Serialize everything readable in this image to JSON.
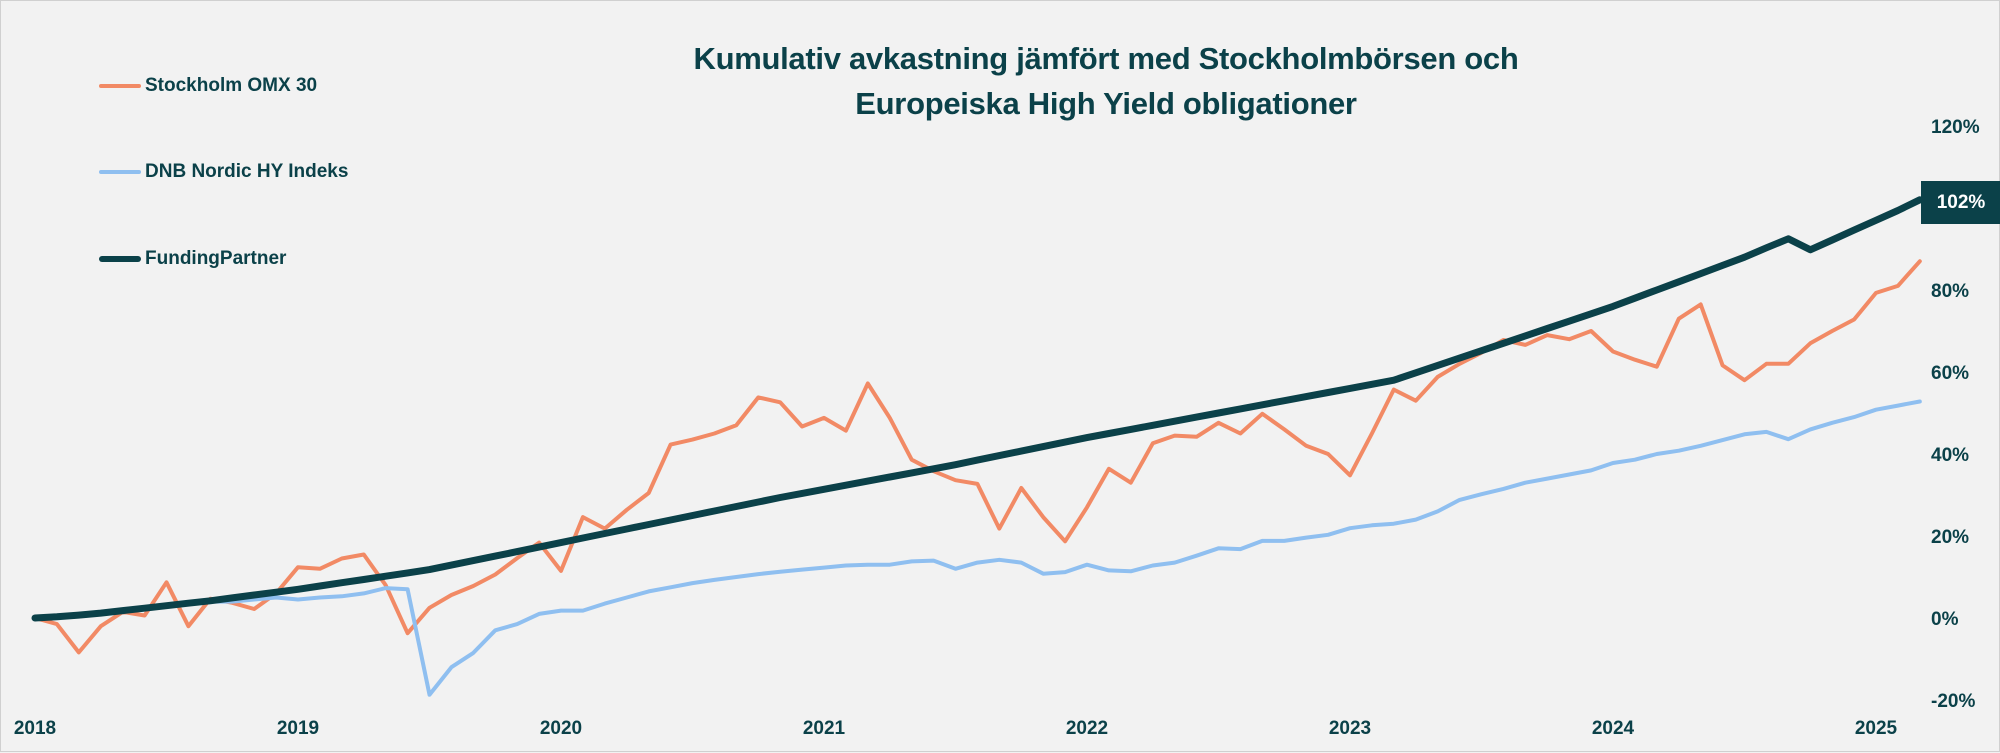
{
  "chart_data": {
    "type": "line",
    "title": "Kumulativ avkastning jämfört med Stockholmbörsen och Europeiska High Yield obligationer",
    "title_lines": [
      "Kumulativ avkastning jämfört med Stockholmbörsen och",
      "Europeiska High Yield obligationer"
    ],
    "xlabel": "",
    "ylabel": "",
    "x_tick_labels": [
      "2018",
      "2019",
      "2020",
      "2021",
      "2022",
      "2023",
      "2024",
      "2025"
    ],
    "y_tick_labels": [
      "120%",
      "100%",
      "80%",
      "60%",
      "40%",
      "20%",
      "0%",
      "-20%"
    ],
    "y_ticks_shown": [
      "120%",
      "80%",
      "60%",
      "40%",
      "20%",
      "0%",
      "-20%"
    ],
    "ylim": [
      -20,
      120
    ],
    "y_unit": "%",
    "grid": false,
    "legend_placement": "top-left",
    "y_axis_side": "right",
    "end_label": "102%",
    "x": [
      "2018-01",
      "2018-02",
      "2018-03",
      "2018-04",
      "2018-05",
      "2018-06",
      "2018-07",
      "2018-08",
      "2018-09",
      "2018-10",
      "2018-11",
      "2018-12",
      "2019-01",
      "2019-02",
      "2019-03",
      "2019-04",
      "2019-05",
      "2019-06",
      "2019-07",
      "2019-08",
      "2019-09",
      "2019-10",
      "2019-11",
      "2019-12",
      "2020-01",
      "2020-02",
      "2020-03",
      "2020-04",
      "2020-05",
      "2020-06",
      "2020-07",
      "2020-08",
      "2020-09",
      "2020-10",
      "2020-11",
      "2020-12",
      "2021-01",
      "2021-02",
      "2021-03",
      "2021-04",
      "2021-05",
      "2021-06",
      "2021-07",
      "2021-08",
      "2021-09",
      "2021-10",
      "2021-11",
      "2021-12",
      "2022-01",
      "2022-02",
      "2022-03",
      "2022-04",
      "2022-05",
      "2022-06",
      "2022-07",
      "2022-08",
      "2022-09",
      "2022-10",
      "2022-11",
      "2022-12",
      "2023-01",
      "2023-02",
      "2023-03",
      "2023-04",
      "2023-05",
      "2023-06",
      "2023-07",
      "2023-08",
      "2023-09",
      "2023-10",
      "2023-11",
      "2023-12",
      "2024-01",
      "2024-02",
      "2024-03",
      "2024-04",
      "2024-05",
      "2024-06",
      "2024-07",
      "2024-08",
      "2024-09",
      "2024-10",
      "2024-11",
      "2024-12",
      "2025-01",
      "2025-02",
      "2025-03"
    ],
    "series": [
      {
        "name": "Stockholm OMX 30",
        "color": "#f28a65",
        "values": [
          0,
          -1.5,
          -8.4,
          -2,
          1.5,
          0.6,
          8.7,
          -2,
          4.7,
          3.7,
          2.2,
          6,
          12.4,
          12,
          14.5,
          15.5,
          8,
          -3.7,
          2.5,
          5.6,
          7.8,
          10.6,
          14.6,
          18.4,
          11.5,
          24.6,
          21.8,
          26.4,
          30.5,
          42.3,
          43.5,
          45,
          47,
          53.8,
          52.6,
          46.7,
          48.8,
          45.7,
          57.2,
          48.8,
          38.6,
          35.8,
          33.6,
          32.7,
          21.8,
          31.7,
          24.6,
          18.7,
          27,
          36.4,
          33,
          42.6,
          44.5,
          44.2,
          47.6,
          45,
          49.8,
          46,
          42,
          40,
          34.8,
          45,
          55.7,
          53,
          58.8,
          62,
          64.7,
          67.8,
          66.6,
          69,
          68,
          70,
          65,
          63,
          61.3,
          73,
          76.5,
          61.6,
          58,
          62,
          62,
          67,
          70,
          72.8,
          79.3,
          81,
          87
        ]
      },
      {
        "name": "DNB Nordic HY Indeks",
        "color": "#8fbff0",
        "values": [
          0,
          0.5,
          1,
          1.5,
          2,
          2.5,
          3,
          3.5,
          4,
          4,
          4.5,
          5,
          4.5,
          5,
          5.3,
          6,
          7.3,
          7,
          -18.7,
          -12,
          -8.5,
          -3,
          -1.5,
          1,
          1.8,
          1.8,
          3.5,
          5,
          6.5,
          7.5,
          8.5,
          9.3,
          10,
          10.7,
          11.3,
          11.8,
          12.3,
          12.8,
          13,
          13,
          13.8,
          14,
          12,
          13.5,
          14.2,
          13.5,
          10.8,
          11.2,
          13,
          11.6,
          11.4,
          12.8,
          13.5,
          15.2,
          17,
          16.8,
          18.8,
          18.8,
          19.6,
          20.3,
          21.9,
          22.6,
          23,
          24,
          26,
          28.8,
          30.2,
          31.5,
          33,
          34,
          35,
          36,
          37.8,
          38.6,
          40,
          40.8,
          42,
          43.4,
          44.8,
          45.4,
          43.6,
          46,
          47.6,
          49,
          50.8,
          51.8,
          52.8
        ]
      },
      {
        "name": "FundingPartner",
        "color": "#0b4149",
        "values": [
          0,
          0.3,
          0.7,
          1.2,
          1.8,
          2.4,
          3,
          3.6,
          4.2,
          4.9,
          5.6,
          6.3,
          7,
          7.8,
          8.6,
          9.4,
          10.2,
          11,
          11.8,
          12.9,
          14,
          15.1,
          16.2,
          17.3,
          18.4,
          19.5,
          20.6,
          21.7,
          22.8,
          23.9,
          25,
          26.1,
          27.2,
          28.3,
          29.4,
          30.4,
          31.4,
          32.4,
          33.4,
          34.4,
          35.4,
          36.4,
          37.4,
          38.5,
          39.6,
          40.7,
          41.8,
          42.9,
          44,
          45,
          46,
          47,
          48,
          49,
          50,
          51,
          52,
          53,
          54,
          55,
          56,
          57,
          58,
          59.8,
          61.6,
          63.4,
          65.2,
          67,
          68.8,
          70.6,
          72.4,
          74.2,
          76,
          78,
          80,
          82,
          84,
          86,
          88,
          90.3,
          92.5,
          89.8,
          92.2,
          94.6,
          97,
          99.4,
          102
        ]
      }
    ]
  }
}
